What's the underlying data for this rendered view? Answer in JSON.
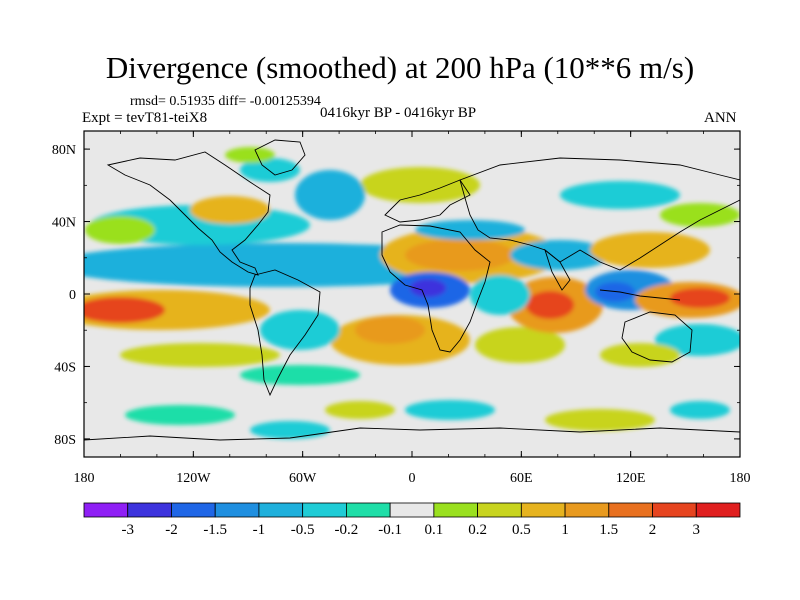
{
  "title": "Divergence (smoothed) at 200 hPa (10**6 m/s)",
  "stats": "rmsd= 0.51935 diff= -0.00125394",
  "experiment": "Expt = tevT81-teiX8",
  "period": "0416kyr BP - 0416kyr BP",
  "season": "ANN",
  "map": {
    "lon_ticks": [
      "180",
      "120W",
      "60W",
      "0",
      "60E",
      "120E",
      "180"
    ],
    "lat_ticks": [
      "80N",
      "40N",
      "0",
      "40S",
      "80S"
    ],
    "background": "#e8e8e8"
  },
  "colorbar": {
    "labels": [
      "-3",
      "-2",
      "-1.5",
      "-1",
      "-0.5",
      "-0.2",
      "-0.1",
      "0.1",
      "0.2",
      "0.5",
      "1",
      "1.5",
      "2",
      "3"
    ],
    "colors": [
      "#8f1ff5",
      "#3d33dd",
      "#1f66e6",
      "#1f8fe0",
      "#1fb0dc",
      "#1fccd6",
      "#1fdea8",
      "#e8e8e8",
      "#9ae01f",
      "#c8d41f",
      "#e6b31f",
      "#e89a1f",
      "#e8701f",
      "#e6441f",
      "#e01f1f"
    ]
  }
}
